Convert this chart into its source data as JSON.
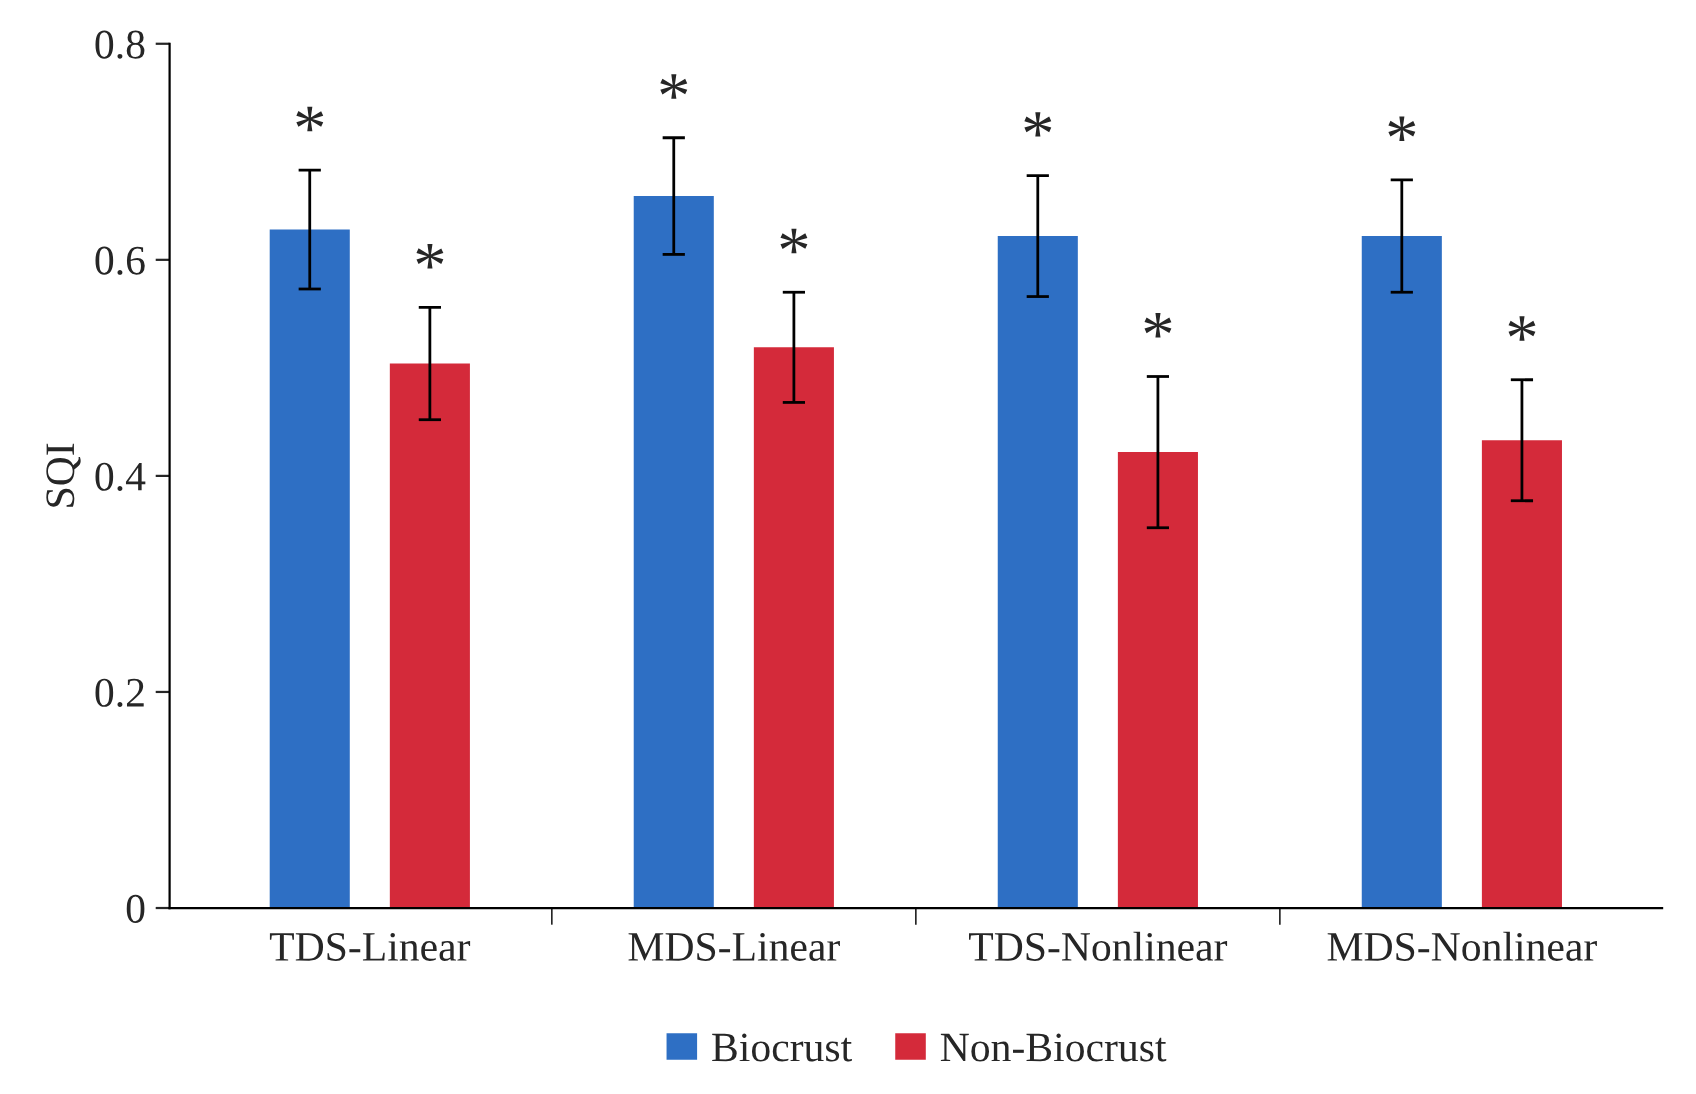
{
  "chart_data": {
    "type": "bar",
    "ylabel": "SQI",
    "categories": [
      "TDS-Linear",
      "MDS-Linear",
      "TDS-Nonlinear",
      "MDS-Nonlinear"
    ],
    "series": [
      {
        "name": "Biocrust",
        "color": "#2e6fc4",
        "values": [
          0.628,
          0.659,
          0.622,
          0.622
        ],
        "errors": [
          0.055,
          0.054,
          0.056,
          0.052
        ]
      },
      {
        "name": "Non-Biocrust",
        "color": "#d42a3a",
        "values": [
          0.504,
          0.519,
          0.422,
          0.433
        ],
        "errors": [
          0.052,
          0.051,
          0.07,
          0.056
        ]
      }
    ],
    "annotations": [
      "*",
      "*",
      "*",
      "*",
      "*",
      "*",
      "*",
      "*"
    ],
    "ylim": [
      0,
      0.8
    ],
    "yticks": [
      0,
      0.2,
      0.4,
      0.6,
      0.8
    ],
    "grid": false,
    "legend": "bottom"
  }
}
